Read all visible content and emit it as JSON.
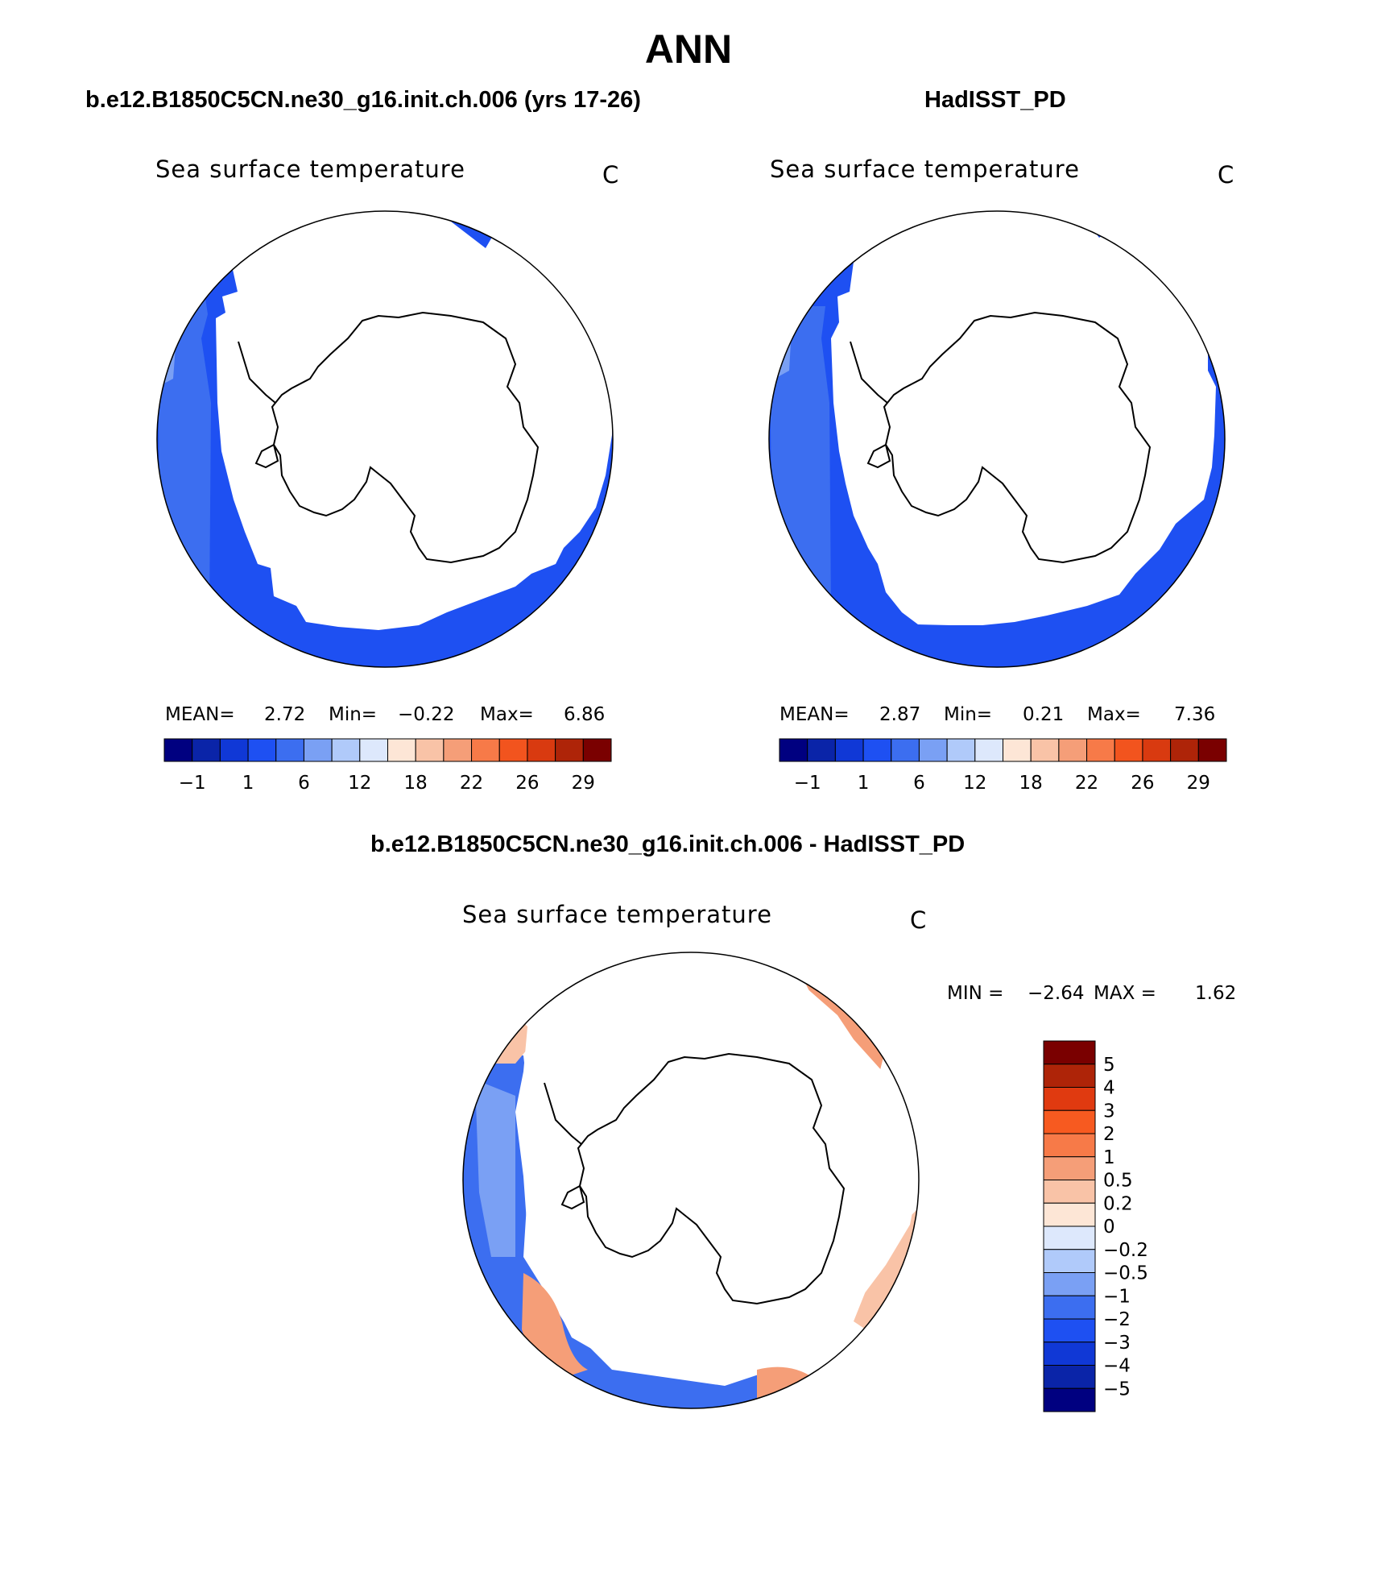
{
  "main_title": "ANN",
  "panel_left": {
    "title": "b.e12.B1850C5CN.ne30_g16.init.ch.006 (yrs 17-26)",
    "variable": "Sea surface temperature",
    "units": "C",
    "stats": {
      "mean_label": "MEAN=",
      "mean": "2.72",
      "min_label": "Min=",
      "min": "−0.22",
      "max_label": "Max=",
      "max": "6.86"
    },
    "colorbar_labels": [
      "−1",
      "1",
      "6",
      "12",
      "18",
      "22",
      "26",
      "29"
    ]
  },
  "panel_right": {
    "title": "HadISST_PD",
    "variable": "Sea surface temperature",
    "units": "C",
    "stats": {
      "mean_label": "MEAN=",
      "mean": "2.87",
      "min_label": "Min=",
      "min": "0.21",
      "max_label": "Max=",
      "max": "7.36"
    },
    "colorbar_labels": [
      "−1",
      "1",
      "6",
      "12",
      "18",
      "22",
      "26",
      "29"
    ]
  },
  "panel_diff": {
    "title": "b.e12.B1850C5CN.ne30_g16.init.ch.006 - HadISST_PD",
    "variable": "Sea surface temperature",
    "units": "C",
    "stats": {
      "min_label": "MIN =",
      "min": "−2.64",
      "max_label": "MAX =",
      "max": "1.62"
    },
    "colorbar_labels": [
      "5",
      "4",
      "3",
      "2",
      "1",
      "0.5",
      "0.2",
      "0",
      "−0.2",
      "−0.5",
      "−1",
      "−2",
      "−3",
      "−4",
      "−5"
    ]
  },
  "colors": {
    "sst_scale": [
      "#000080",
      "#0a24a8",
      "#1038d6",
      "#1e50f2",
      "#3c6ef0",
      "#7aa0f4",
      "#b0cafa",
      "#dde8fc",
      "#fde6d6",
      "#f9c3a7",
      "#f59e78",
      "#f77a48",
      "#f2541e",
      "#d93a10",
      "#ae2408",
      "#7a0000"
    ],
    "diff_scale": [
      "#7a0000",
      "#ae2408",
      "#e03a10",
      "#f75a20",
      "#f77a48",
      "#f59e78",
      "#f9c3a7",
      "#fde6d6",
      "#dde8fc",
      "#b0cafa",
      "#7aa0f4",
      "#3c6ef0",
      "#1e50f2",
      "#1038d6",
      "#0a24a8",
      "#000080"
    ]
  }
}
